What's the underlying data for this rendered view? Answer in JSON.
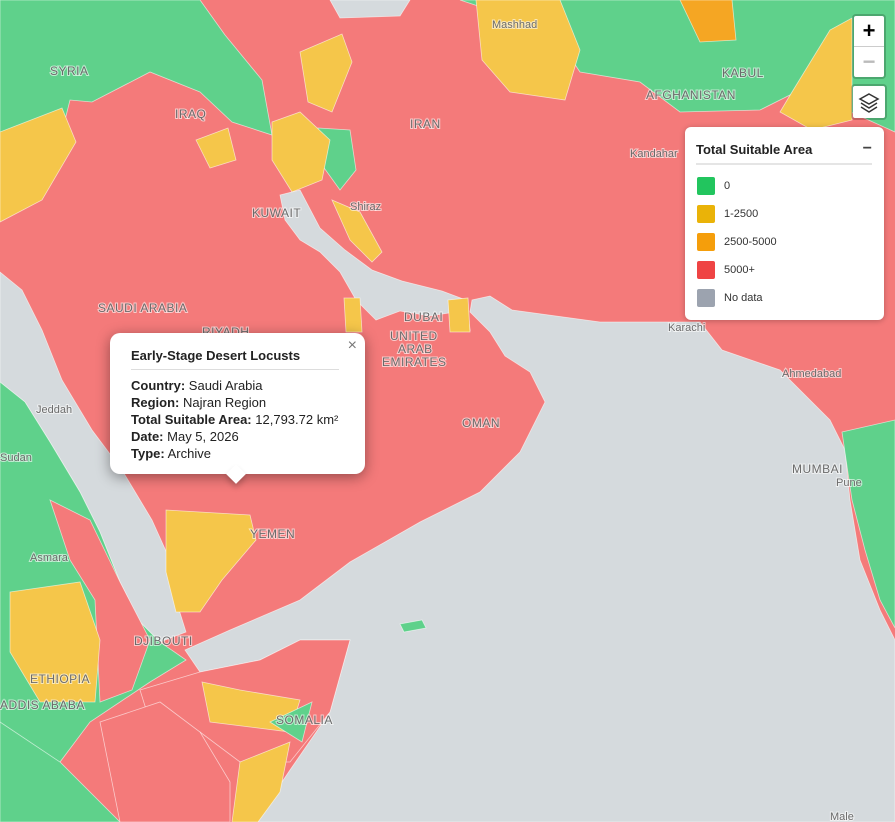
{
  "zoom": {
    "in": "+",
    "out": "−"
  },
  "legend": {
    "title": "Total Suitable Area",
    "collapse": "−",
    "items": [
      {
        "label": "0",
        "color": "#22c55e"
      },
      {
        "label": "1-2500",
        "color": "#eab308"
      },
      {
        "label": "2500-5000",
        "color": "#f59e0b"
      },
      {
        "label": "5000+",
        "color": "#ef4444"
      },
      {
        "label": "No data",
        "color": "#9ca3af"
      }
    ]
  },
  "popup": {
    "title": "Early-Stage Desert Locusts",
    "close": "×",
    "rows": [
      {
        "label": "Country:",
        "value": "Saudi Arabia"
      },
      {
        "label": "Region:",
        "value": "Najran Region"
      },
      {
        "label": "Total Suitable Area:",
        "value": "12,793.72 km²"
      },
      {
        "label": "Date:",
        "value": "May 5, 2026"
      },
      {
        "label": "Type:",
        "value": "Archive"
      }
    ]
  },
  "map_labels": [
    "SYRIA",
    "IRAQ",
    "IRAN",
    "KUWAIT",
    "SAUDI ARABIA",
    "RIYADH",
    "DUBAI",
    "UNITED",
    "ARAB",
    "EMIRATES",
    "OMAN",
    "YEMEN",
    "Jeddah",
    "Sudan",
    "Asmara",
    "DJIBOUTI",
    "ETHIOPIA",
    "ADDIS ABABA",
    "SOMALIA",
    "Mashhad",
    "KABUL",
    "AFGHANISTAN",
    "Kandahar",
    "Shiraz",
    "Karachi",
    "Ahmedabad",
    "MUMBAI",
    "Pune",
    "Male"
  ]
}
